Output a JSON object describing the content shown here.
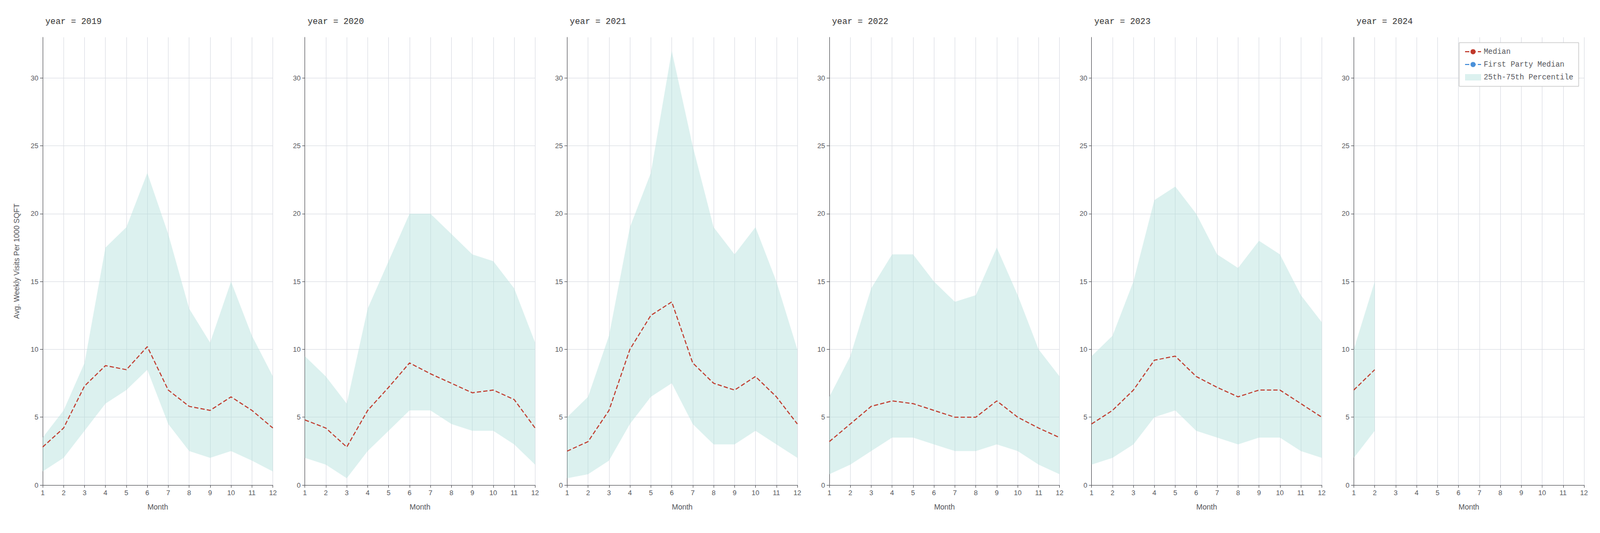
{
  "chart_data": [
    {
      "type": "line",
      "title": "year = 2019",
      "xlabel": "Month",
      "ylabel": "Avg. Weekly Visits Per 1000 SQFT",
      "x": [
        1,
        2,
        3,
        4,
        5,
        6,
        7,
        8,
        9,
        10,
        11,
        12
      ],
      "xlim": [
        1,
        12
      ],
      "xticks": [
        1,
        2,
        3,
        4,
        5,
        6,
        7,
        8,
        9,
        10,
        11,
        12
      ],
      "ylim": [
        0,
        33
      ],
      "yticks": [
        0,
        5,
        10,
        15,
        20,
        25,
        30
      ],
      "grid": true,
      "series": [
        {
          "name": "Median",
          "type": "line",
          "color": "#c0392b",
          "line_style": "dashed",
          "values": [
            2.8,
            4.2,
            7.3,
            8.8,
            8.5,
            10.2,
            7.0,
            5.8,
            5.5,
            6.5,
            5.5,
            4.2
          ]
        },
        {
          "name": "25th-75th Percentile",
          "type": "band",
          "color": "#b2dfdb",
          "low": [
            1.0,
            2.0,
            4.0,
            6.0,
            7.0,
            8.5,
            4.5,
            2.5,
            2.0,
            2.5,
            1.8,
            1.0
          ],
          "high": [
            3.5,
            5.5,
            9.0,
            17.5,
            19.0,
            23.0,
            18.5,
            13.0,
            10.5,
            15.0,
            11.0,
            8.0
          ]
        }
      ]
    },
    {
      "type": "line",
      "title": "year = 2020",
      "xlabel": "Month",
      "x": [
        1,
        2,
        3,
        4,
        5,
        6,
        7,
        8,
        9,
        10,
        11,
        12
      ],
      "xlim": [
        1,
        12
      ],
      "xticks": [
        1,
        2,
        3,
        4,
        5,
        6,
        7,
        8,
        9,
        10,
        11,
        12
      ],
      "ylim": [
        0,
        33
      ],
      "yticks": [
        0,
        5,
        10,
        15,
        20,
        25,
        30
      ],
      "grid": true,
      "series": [
        {
          "name": "Median",
          "type": "line",
          "color": "#c0392b",
          "line_style": "dashed",
          "values": [
            4.8,
            4.2,
            2.8,
            5.5,
            7.2,
            9.0,
            8.2,
            7.5,
            6.8,
            7.0,
            6.3,
            4.2
          ]
        },
        {
          "name": "25th-75th Percentile",
          "type": "band",
          "color": "#b2dfdb",
          "low": [
            2.0,
            1.5,
            0.5,
            2.5,
            4.0,
            5.5,
            5.5,
            4.5,
            4.0,
            4.0,
            3.0,
            1.5
          ],
          "high": [
            9.5,
            8.0,
            6.0,
            13.0,
            16.5,
            20.0,
            20.0,
            18.5,
            17.0,
            16.5,
            14.5,
            10.5
          ]
        }
      ]
    },
    {
      "type": "line",
      "title": "year = 2021",
      "xlabel": "Month",
      "x": [
        1,
        2,
        3,
        4,
        5,
        6,
        7,
        8,
        9,
        10,
        11,
        12
      ],
      "xlim": [
        1,
        12
      ],
      "xticks": [
        1,
        2,
        3,
        4,
        5,
        6,
        7,
        8,
        9,
        10,
        11,
        12
      ],
      "ylim": [
        0,
        33
      ],
      "yticks": [
        0,
        5,
        10,
        15,
        20,
        25,
        30
      ],
      "grid": true,
      "series": [
        {
          "name": "Median",
          "type": "line",
          "color": "#c0392b",
          "line_style": "dashed",
          "values": [
            2.5,
            3.2,
            5.5,
            10.0,
            12.5,
            13.5,
            9.0,
            7.5,
            7.0,
            8.0,
            6.5,
            4.5
          ]
        },
        {
          "name": "25th-75th Percentile",
          "type": "band",
          "color": "#b2dfdb",
          "low": [
            0.5,
            0.8,
            1.8,
            4.5,
            6.5,
            7.5,
            4.5,
            3.0,
            3.0,
            4.0,
            3.0,
            2.0
          ],
          "high": [
            5.0,
            6.5,
            11.0,
            19.0,
            23.0,
            32.0,
            25.0,
            19.0,
            17.0,
            19.0,
            15.0,
            10.0
          ]
        }
      ]
    },
    {
      "type": "line",
      "title": "year = 2022",
      "xlabel": "Month",
      "x": [
        1,
        2,
        3,
        4,
        5,
        6,
        7,
        8,
        9,
        10,
        11,
        12
      ],
      "xlim": [
        1,
        12
      ],
      "xticks": [
        1,
        2,
        3,
        4,
        5,
        6,
        7,
        8,
        9,
        10,
        11,
        12
      ],
      "ylim": [
        0,
        33
      ],
      "yticks": [
        0,
        5,
        10,
        15,
        20,
        25,
        30
      ],
      "grid": true,
      "series": [
        {
          "name": "Median",
          "type": "line",
          "color": "#c0392b",
          "line_style": "dashed",
          "values": [
            3.2,
            4.5,
            5.8,
            6.2,
            6.0,
            5.5,
            5.0,
            5.0,
            6.2,
            5.0,
            4.2,
            3.5
          ]
        },
        {
          "name": "25th-75th Percentile",
          "type": "band",
          "color": "#b2dfdb",
          "low": [
            0.8,
            1.5,
            2.5,
            3.5,
            3.5,
            3.0,
            2.5,
            2.5,
            3.0,
            2.5,
            1.5,
            0.8
          ],
          "high": [
            6.5,
            9.5,
            14.5,
            17.0,
            17.0,
            15.0,
            13.5,
            14.0,
            17.5,
            14.0,
            10.0,
            8.0
          ]
        }
      ]
    },
    {
      "type": "line",
      "title": "year = 2023",
      "xlabel": "Month",
      "x": [
        1,
        2,
        3,
        4,
        5,
        6,
        7,
        8,
        9,
        10,
        11,
        12
      ],
      "xlim": [
        1,
        12
      ],
      "xticks": [
        1,
        2,
        3,
        4,
        5,
        6,
        7,
        8,
        9,
        10,
        11,
        12
      ],
      "ylim": [
        0,
        33
      ],
      "yticks": [
        0,
        5,
        10,
        15,
        20,
        25,
        30
      ],
      "grid": true,
      "series": [
        {
          "name": "Median",
          "type": "line",
          "color": "#c0392b",
          "line_style": "dashed",
          "values": [
            4.5,
            5.5,
            7.0,
            9.2,
            9.5,
            8.0,
            7.2,
            6.5,
            7.0,
            7.0,
            6.0,
            5.0
          ]
        },
        {
          "name": "25th-75th Percentile",
          "type": "band",
          "color": "#b2dfdb",
          "low": [
            1.5,
            2.0,
            3.0,
            5.0,
            5.5,
            4.0,
            3.5,
            3.0,
            3.5,
            3.5,
            2.5,
            2.0
          ],
          "high": [
            9.5,
            11.0,
            15.0,
            21.0,
            22.0,
            20.0,
            17.0,
            16.0,
            18.0,
            17.0,
            14.0,
            12.0
          ]
        }
      ]
    },
    {
      "type": "line",
      "title": "year = 2024",
      "xlabel": "Month",
      "x": [
        1,
        2,
        3,
        4,
        5,
        6,
        7,
        8,
        9,
        10,
        11,
        12
      ],
      "xlim": [
        1,
        12
      ],
      "xticks": [
        1,
        2,
        3,
        4,
        5,
        6,
        7,
        8,
        9,
        10,
        11,
        12
      ],
      "ylim": [
        0,
        33
      ],
      "yticks": [
        0,
        5,
        10,
        15,
        20,
        25,
        30
      ],
      "grid": true,
      "legend": "upper right",
      "series": [
        {
          "name": "Median",
          "type": "line",
          "color": "#c0392b",
          "line_style": "dashed",
          "values": [
            7.0,
            8.5,
            null,
            null,
            null,
            null,
            null,
            null,
            null,
            null,
            null,
            null
          ]
        },
        {
          "name": "First Party Median",
          "type": "line",
          "color": "#4a90d9",
          "line_style": "dashed",
          "values": [
            null,
            null,
            null,
            null,
            null,
            null,
            null,
            null,
            null,
            null,
            null,
            null
          ]
        },
        {
          "name": "25th-75th Percentile",
          "type": "band",
          "color": "#b2dfdb",
          "low": [
            2.0,
            4.0,
            null,
            null,
            null,
            null,
            null,
            null,
            null,
            null,
            null,
            null
          ],
          "high": [
            10.0,
            15.0,
            null,
            null,
            null,
            null,
            null,
            null,
            null,
            null,
            null,
            null
          ]
        }
      ]
    }
  ]
}
